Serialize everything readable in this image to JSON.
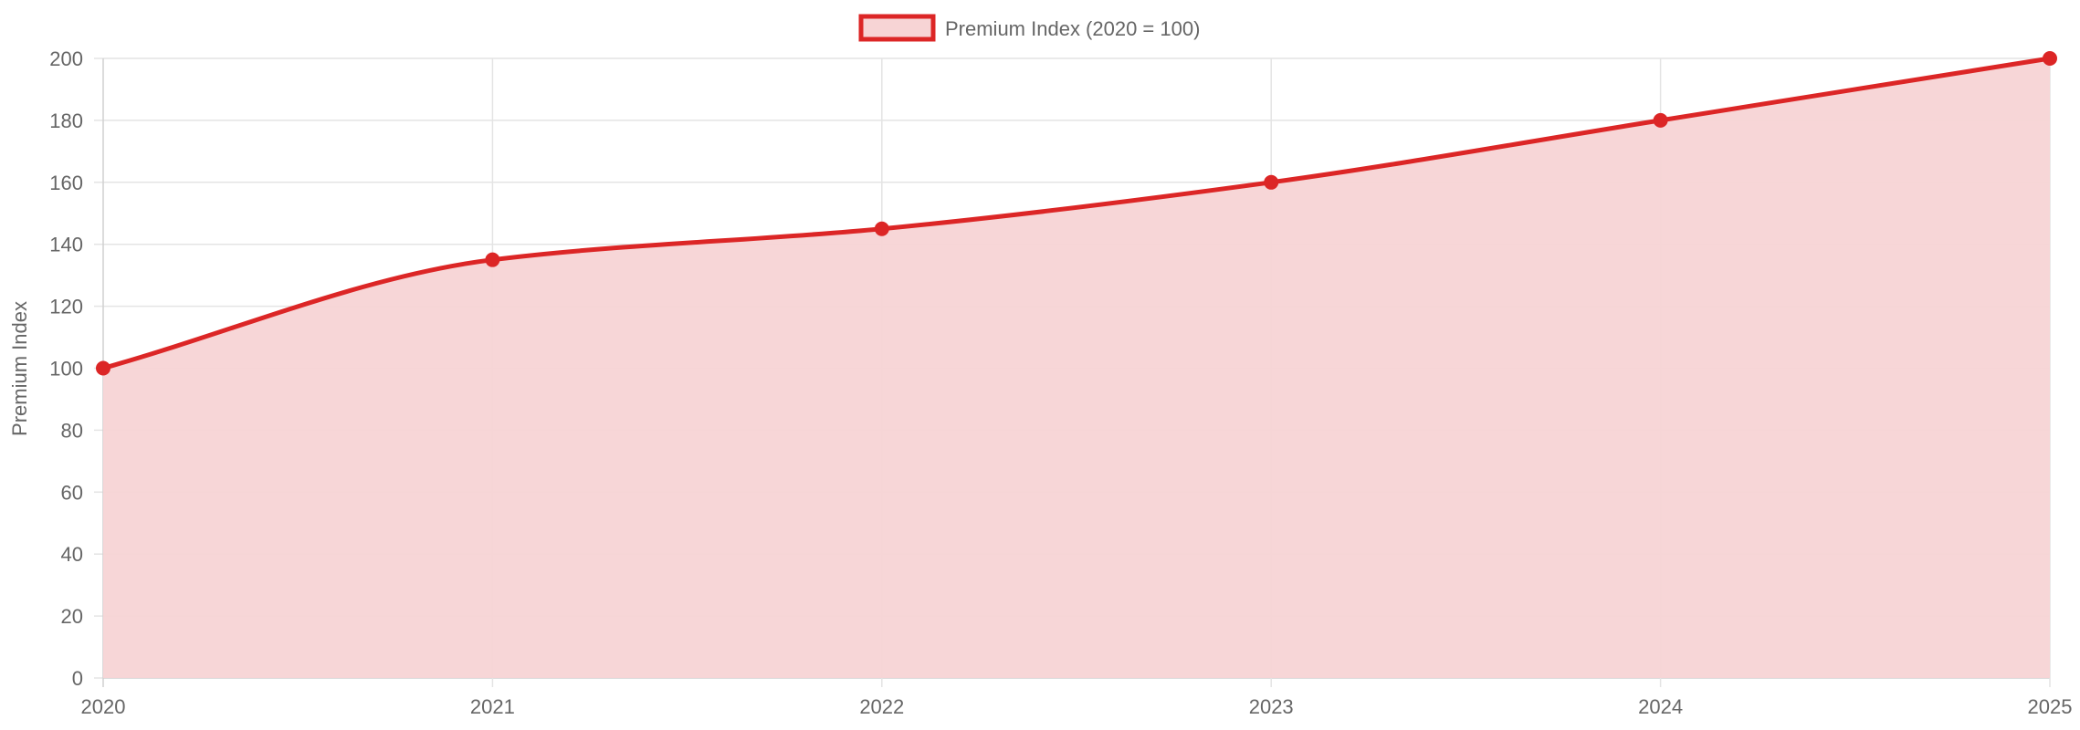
{
  "chart_data": {
    "type": "area",
    "x": [
      "2020",
      "2021",
      "2022",
      "2023",
      "2024",
      "2025"
    ],
    "series": [
      {
        "name": "Premium Index (2020 = 100)",
        "values": [
          100,
          135,
          145,
          160,
          180,
          200
        ],
        "color": "#dc2626",
        "fill": "#f7d4d5"
      }
    ],
    "ylabel": "Premium Index",
    "xlabel": "",
    "ylim": [
      0,
      200
    ],
    "yticks": [
      "0",
      "20",
      "40",
      "60",
      "80",
      "100",
      "120",
      "140",
      "160",
      "180",
      "200"
    ],
    "grid": true,
    "legend_position": "top-center",
    "smooth": true
  }
}
